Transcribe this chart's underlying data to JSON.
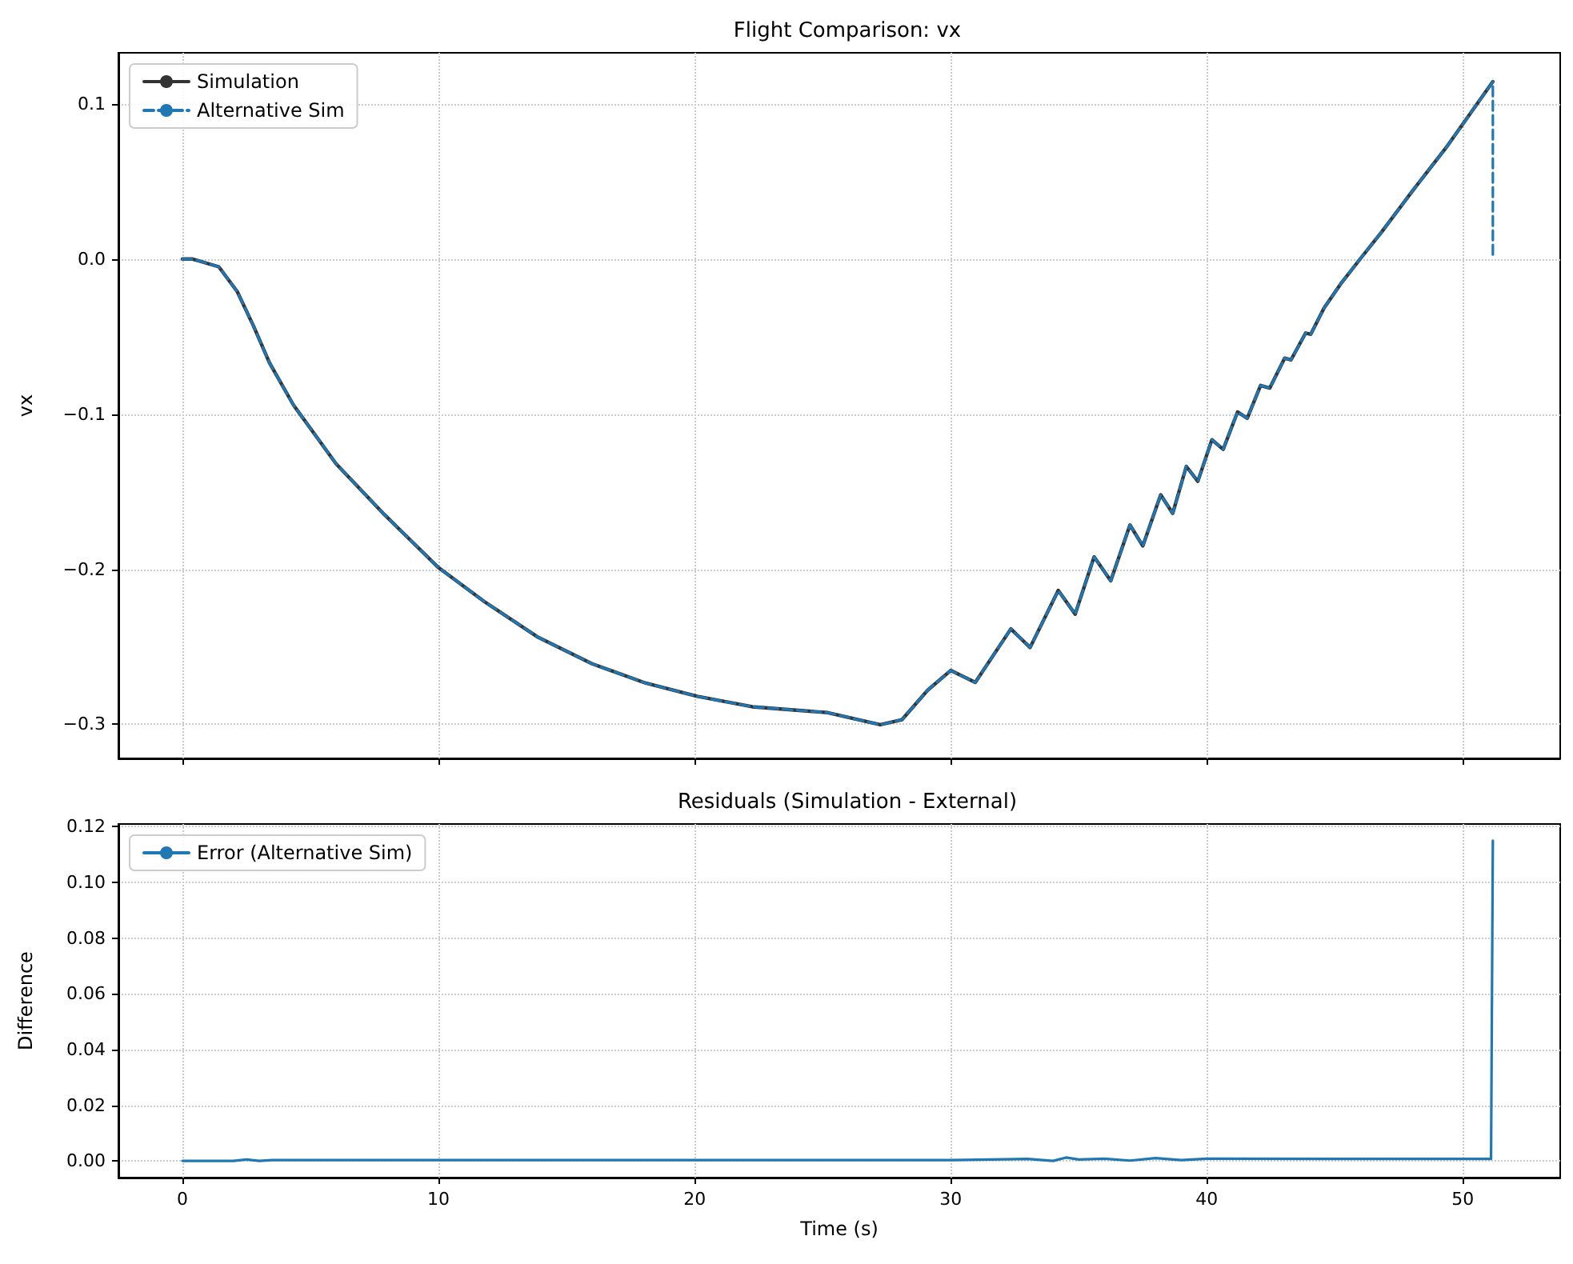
{
  "chart_data": [
    {
      "type": "line",
      "title": "Flight Comparison: vx",
      "ylabel": "vx",
      "xlim": [
        -2.5,
        53.8
      ],
      "xticks": [
        0,
        10,
        20,
        30,
        40,
        50
      ],
      "ylim": [
        -0.322,
        0.133
      ],
      "yticks": [
        {
          "value": -0.3,
          "label": "−0.3"
        },
        {
          "value": -0.2,
          "label": "−0.2"
        },
        {
          "value": -0.1,
          "label": "−0.1"
        },
        {
          "value": 0,
          "label": "0.0"
        },
        {
          "value": 0.1,
          "label": "0.1"
        }
      ],
      "tick_labels": "y",
      "grid": true,
      "legend": "top left",
      "marker": "none",
      "series": [
        {
          "name": "Simulation",
          "color": "#333333",
          "line_style": "solid",
          "x": [
            0,
            0.4,
            1.42,
            2.14,
            2.77,
            3.4,
            4.33,
            6.0,
            7.9,
            10,
            11.8,
            13.9,
            16,
            18.1,
            20.1,
            22.25,
            25.2,
            27.25,
            28.1,
            29.1,
            30.0,
            30.96,
            32.35,
            33.1,
            34.2,
            34.86,
            35.6,
            36.25,
            37.0,
            37.5,
            38.2,
            38.67,
            39.2,
            39.65,
            40.2,
            40.64,
            41.2,
            41.58,
            42.1,
            42.46,
            43.04,
            43.29,
            43.86,
            44.06,
            44.58,
            45.27,
            46.0,
            46.83,
            48.08,
            49.33,
            51.17
          ],
          "values": [
            0,
            0,
            -0.005,
            -0.021,
            -0.043,
            -0.067,
            -0.094,
            -0.132,
            -0.165,
            -0.199,
            -0.221,
            -0.244,
            -0.261,
            -0.2735,
            -0.282,
            -0.2887,
            -0.2925,
            -0.3003,
            -0.297,
            -0.278,
            -0.2653,
            -0.273,
            -0.2385,
            -0.2505,
            -0.2137,
            -0.229,
            -0.192,
            -0.2075,
            -0.1715,
            -0.185,
            -0.152,
            -0.164,
            -0.1337,
            -0.1433,
            -0.1165,
            -0.1227,
            -0.0986,
            -0.1027,
            -0.0815,
            -0.0832,
            -0.0639,
            -0.065,
            -0.0477,
            -0.0485,
            -0.0316,
            -0.0151,
            0.0003,
            0.0175,
            0.045,
            0.0715,
            0.1144
          ]
        },
        {
          "name": "Alternative Sim",
          "color": "#1f77b4",
          "line_style": "dashed",
          "x": [
            0,
            0.4,
            1.42,
            2.14,
            2.77,
            3.4,
            4.33,
            6.0,
            7.9,
            10,
            11.8,
            13.9,
            16,
            18.1,
            20.1,
            22.25,
            25.2,
            27.25,
            28.1,
            29.1,
            30.0,
            30.96,
            32.35,
            33.1,
            34.2,
            34.86,
            35.6,
            36.25,
            37.0,
            37.5,
            38.2,
            38.67,
            39.2,
            39.65,
            40.2,
            40.64,
            41.2,
            41.58,
            42.1,
            42.46,
            43.04,
            43.29,
            43.86,
            44.06,
            44.58,
            45.27,
            46.0,
            46.83,
            48.08,
            49.33,
            51.17,
            51.17
          ],
          "values": [
            0,
            0,
            -0.005,
            -0.021,
            -0.043,
            -0.067,
            -0.094,
            -0.132,
            -0.165,
            -0.199,
            -0.221,
            -0.244,
            -0.261,
            -0.2735,
            -0.282,
            -0.2887,
            -0.2925,
            -0.3003,
            -0.297,
            -0.278,
            -0.2653,
            -0.273,
            -0.2385,
            -0.2505,
            -0.2137,
            -0.229,
            -0.192,
            -0.2075,
            -0.1715,
            -0.185,
            -0.152,
            -0.164,
            -0.1337,
            -0.1433,
            -0.1165,
            -0.1227,
            -0.0986,
            -0.1027,
            -0.0815,
            -0.0832,
            -0.0639,
            -0.065,
            -0.0477,
            -0.0485,
            -0.0316,
            -0.0151,
            0.0003,
            0.0175,
            0.045,
            0.0715,
            0.1144,
            0.002
          ]
        }
      ]
    },
    {
      "type": "line",
      "title": "Residuals (Simulation - External)",
      "xlabel": "Time (s)",
      "ylabel": "Difference",
      "xlim": [
        -2.5,
        53.8
      ],
      "xticks": [
        0,
        10,
        20,
        30,
        40,
        50
      ],
      "ylim": [
        -0.006,
        0.121
      ],
      "yticks": [
        {
          "value": 0,
          "label": "0.00"
        },
        {
          "value": 0.02,
          "label": "0.02"
        },
        {
          "value": 0.04,
          "label": "0.04"
        },
        {
          "value": 0.06,
          "label": "0.06"
        },
        {
          "value": 0.08,
          "label": "0.08"
        },
        {
          "value": 0.1,
          "label": "0.10"
        },
        {
          "value": 0.12,
          "label": "0.12"
        }
      ],
      "grid": true,
      "legend": "top left",
      "marker": "none",
      "series": [
        {
          "name": "Error (Alternative Sim)",
          "color": "#1f77b4",
          "line_style": "solid",
          "x": [
            0,
            2,
            2.5,
            3,
            3.5,
            30,
            33,
            34,
            34.5,
            35,
            36,
            37,
            38,
            39,
            40,
            45,
            51.1,
            51.17
          ],
          "values": [
            0,
            0,
            0.0005,
            0,
            0.0003,
            0.0003,
            0.0007,
            0,
            0.0012,
            0.0005,
            0.0008,
            0.0001,
            0.001,
            0.0003,
            0.0008,
            0.0007,
            0.0007,
            0.115
          ]
        }
      ]
    }
  ]
}
